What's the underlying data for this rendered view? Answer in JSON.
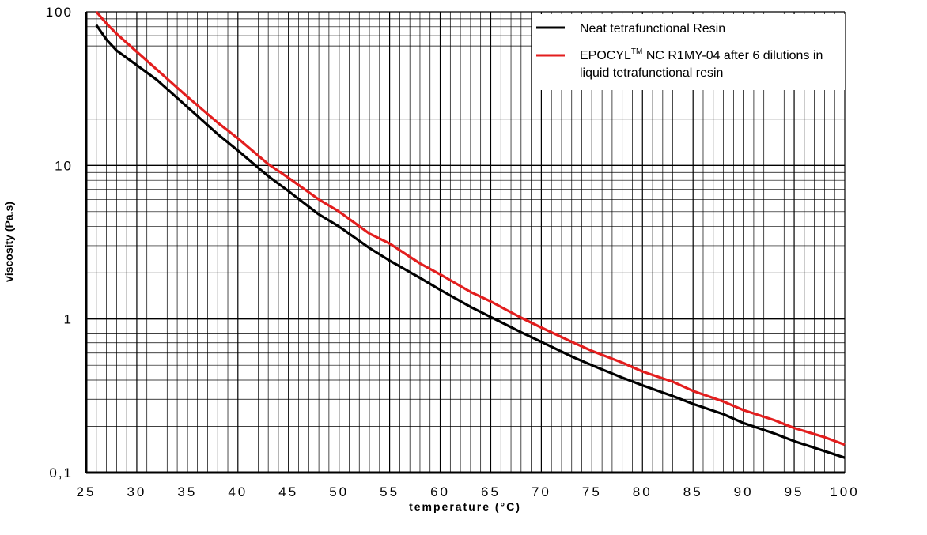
{
  "chart_data": {
    "type": "line",
    "xlabel": "temperature (°C)",
    "ylabel": "viscosity (Pa.s)",
    "xlim": [
      25,
      100
    ],
    "ylim": [
      0.1,
      100
    ],
    "yscale": "log",
    "grid": true,
    "legend_position": "top-right",
    "x_ticks": [
      "25",
      "30",
      "35",
      "40",
      "45",
      "50",
      "55",
      "60",
      "65",
      "70",
      "75",
      "80",
      "85",
      "90",
      "95",
      "100"
    ],
    "y_ticks": [
      "0,1",
      "1",
      "10",
      "100"
    ],
    "series": [
      {
        "name": "Neat tetrafunctional Resin",
        "color": "#000000",
        "x": [
          26,
          27,
          28,
          30,
          32,
          35,
          38,
          40,
          43,
          45,
          48,
          50,
          53,
          55,
          58,
          60,
          63,
          65,
          68,
          70,
          73,
          75,
          78,
          80,
          83,
          85,
          88,
          90,
          93,
          95,
          98,
          100
        ],
        "y": [
          82,
          66,
          56,
          45,
          36,
          24,
          16,
          12.5,
          8.5,
          6.8,
          4.8,
          4,
          2.9,
          2.4,
          1.85,
          1.55,
          1.2,
          1.03,
          0.82,
          0.71,
          0.57,
          0.5,
          0.415,
          0.37,
          0.315,
          0.28,
          0.24,
          0.21,
          0.18,
          0.16,
          0.138,
          0.125
        ]
      },
      {
        "name": "EPOCYLTM NC R1MY-04 after 6 dilutions in liquid tetrafunctional resin",
        "color": "#e31e1e",
        "x": [
          26,
          27,
          28,
          30,
          32,
          35,
          38,
          40,
          43,
          45,
          48,
          50,
          53,
          55,
          58,
          60,
          63,
          65,
          68,
          70,
          73,
          75,
          78,
          80,
          83,
          85,
          88,
          90,
          93,
          95,
          98,
          100
        ],
        "y": [
          100,
          84,
          72,
          55,
          42,
          28,
          19,
          15,
          10.2,
          8.3,
          6,
          5,
          3.6,
          3.1,
          2.3,
          1.95,
          1.5,
          1.3,
          1.02,
          0.88,
          0.71,
          0.62,
          0.52,
          0.455,
          0.39,
          0.34,
          0.29,
          0.255,
          0.22,
          0.195,
          0.17,
          0.152
        ]
      }
    ]
  },
  "legend": {
    "items": [
      {
        "text": "Neat tetrafunctional Resin",
        "color": "#000000"
      },
      {
        "text_main": "EPOCYL",
        "text_sup": "TM",
        "text_rest": " NC R1MY-04 after 6 dilutions in",
        "text_line2": "liquid tetrafunctional resin",
        "color": "#e31e1e"
      }
    ]
  }
}
